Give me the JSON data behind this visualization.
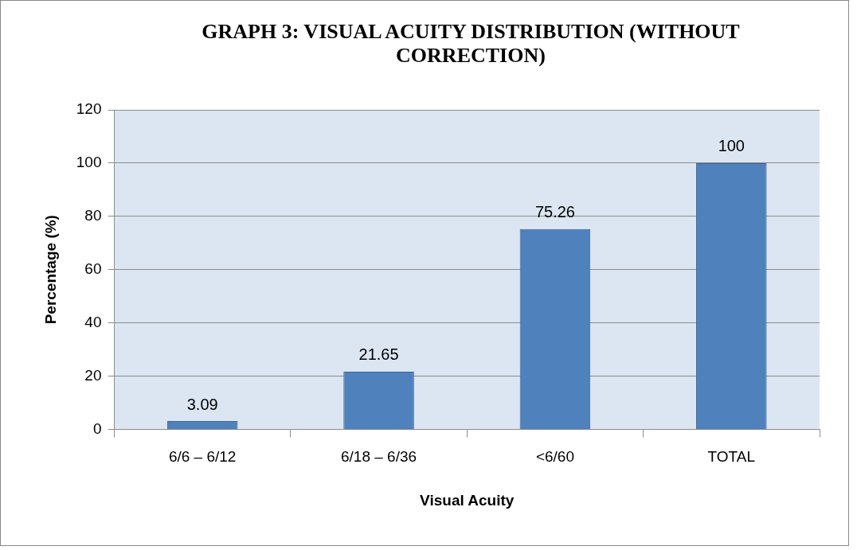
{
  "chart_data": {
    "type": "bar",
    "title": "GRAPH 3: VISUAL ACUITY DISTRIBUTION (WITHOUT CORRECTION)",
    "xlabel": "Visual Acuity",
    "ylabel": "Percentage (%)",
    "categories": [
      "6/6 – 6/12",
      "6/18 – 6/36",
      "<6/60",
      "TOTAL"
    ],
    "values": [
      3.09,
      21.65,
      75.26,
      100
    ],
    "color": "#4f81bd",
    "ylim": [
      0,
      120
    ],
    "yticks": [
      0,
      20,
      40,
      60,
      80,
      100,
      120
    ],
    "grid": "y",
    "data_labels": true,
    "legend": false
  }
}
